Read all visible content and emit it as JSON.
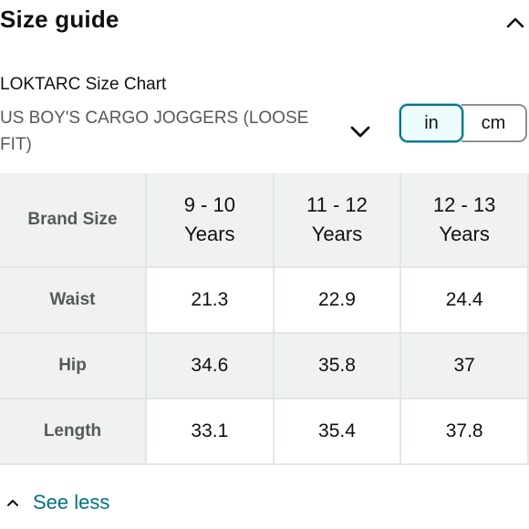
{
  "header": {
    "title": "Size guide",
    "collapse_icon": "chevron-up-icon"
  },
  "chart": {
    "name": "LOKTARC Size Chart",
    "product": "US BOY'S CARGO JOGGERS (LOOSE FIT)",
    "dropdown_icon": "chevron-down-icon"
  },
  "units": {
    "options": [
      "in",
      "cm"
    ],
    "selected": "in",
    "accent_color": "#007185"
  },
  "table": {
    "corner_header": "Brand Size",
    "columns": [
      {
        "line1": "9 - 10",
        "line2": "Years"
      },
      {
        "line1": "11 - 12",
        "line2": "Years"
      },
      {
        "line1": "12 - 13",
        "line2": "Years"
      }
    ],
    "rows": [
      {
        "label": "Waist",
        "values": [
          "21.3",
          "22.9",
          "24.4"
        ]
      },
      {
        "label": "Hip",
        "values": [
          "34.6",
          "35.8",
          "37"
        ]
      },
      {
        "label": "Length",
        "values": [
          "33.1",
          "35.4",
          "37.8"
        ]
      }
    ]
  },
  "footer": {
    "see_less_label": "See less",
    "see_less_icon": "chevron-up-small-icon",
    "link_color": "#007185"
  }
}
